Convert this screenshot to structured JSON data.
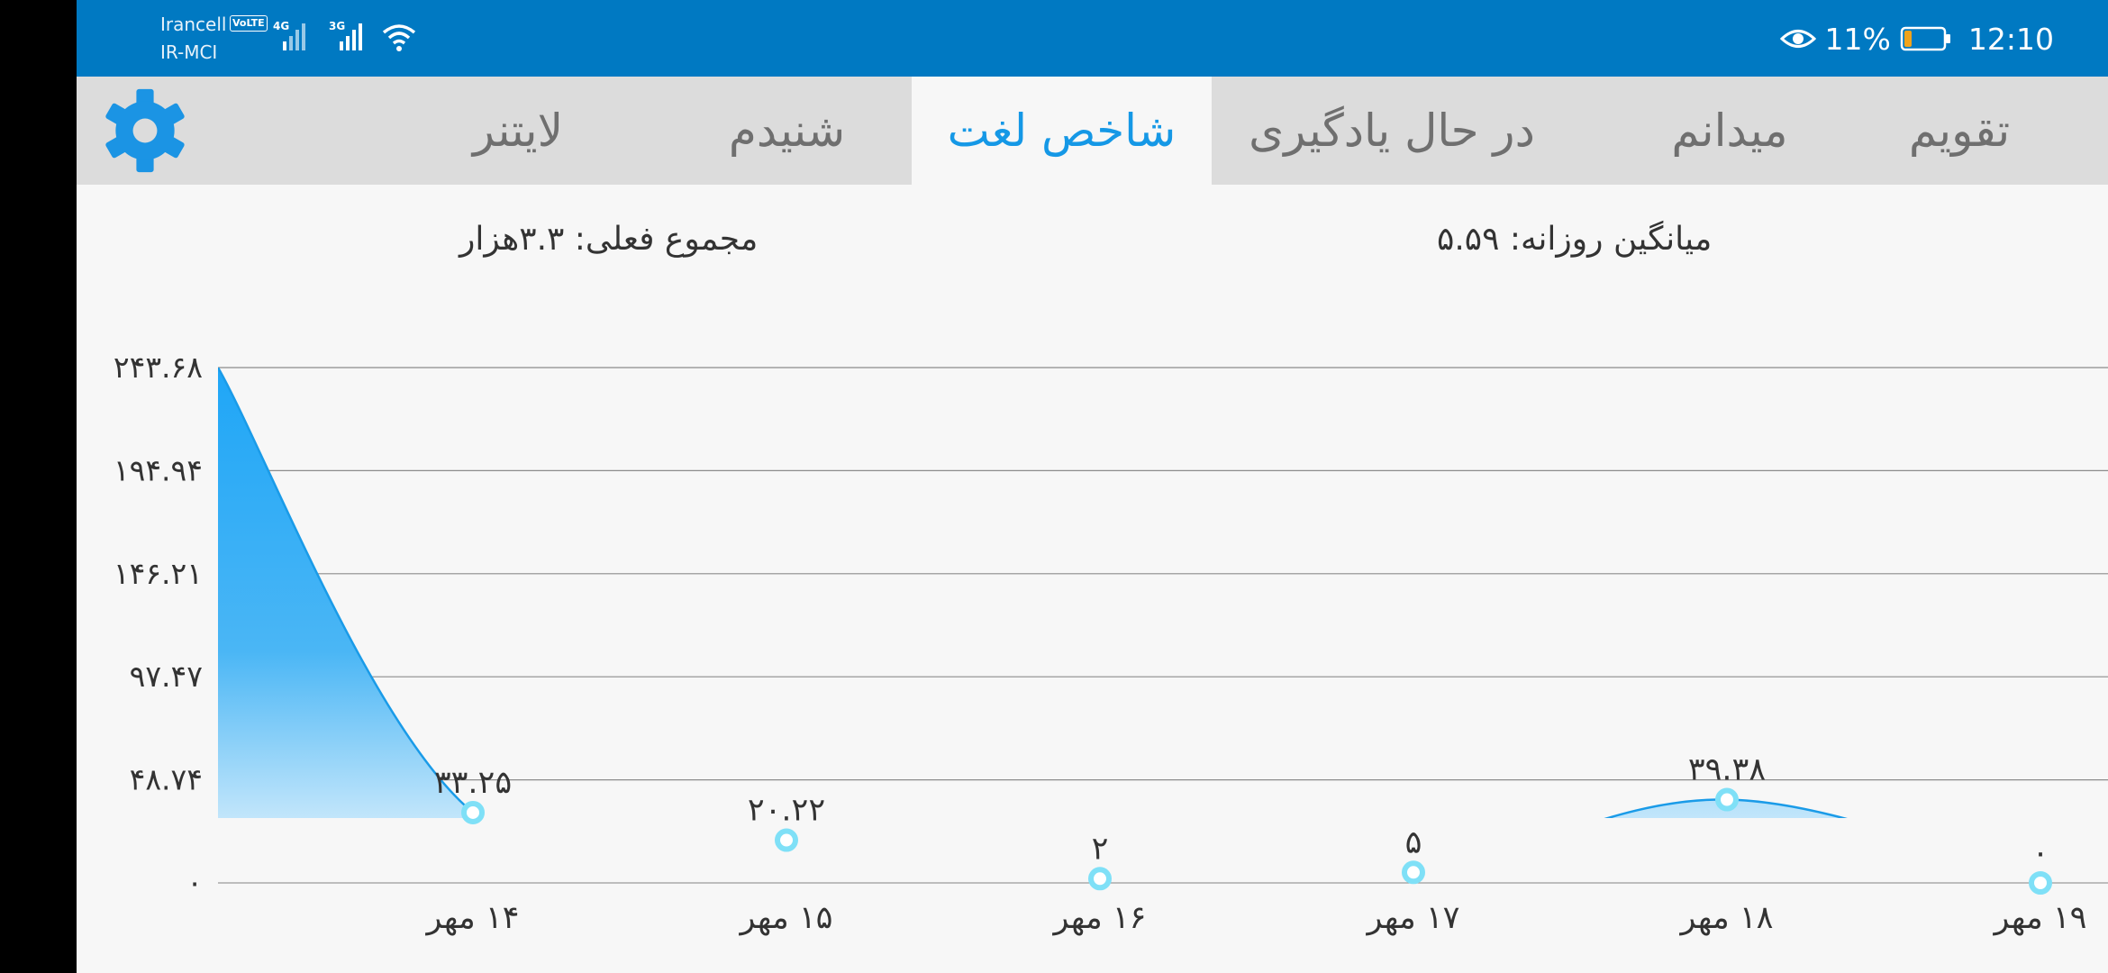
{
  "status_bar": {
    "carrier_primary": "Irancell",
    "carrier_secondary": "IR-MCI",
    "volte_badge": "VoLTE",
    "network_primary": "4G",
    "network_secondary": "3G",
    "battery_percent": "11%",
    "time": "12:10"
  },
  "tabs": [
    {
      "label": "تقویم",
      "active": false
    },
    {
      "label": "میدانم",
      "active": false
    },
    {
      "label": "در حال یادگیری",
      "active": false
    },
    {
      "label": "شاخص لغت",
      "active": true
    },
    {
      "label": "شنیدم",
      "active": false
    },
    {
      "label": "لایتنر",
      "active": false
    }
  ],
  "stats": {
    "daily_average": "میانگین روزانه: ۵.۵۹",
    "current_total": "مجموع فعلی: ۳.۳هزار"
  },
  "colors": {
    "status_bar": "#0079c2",
    "accent": "#1598e6",
    "series_line": "#1a9be8",
    "area_top": "#1fa6f7",
    "marker": "#7fe0f7"
  },
  "chart_data": {
    "type": "area",
    "title": "",
    "xlabel": "",
    "ylabel": "",
    "yticks": [
      "۰",
      "۴۸.۷۴",
      "۹۷.۴۷",
      "۱۴۶.۲۱",
      "۱۹۴.۹۴",
      "۲۴۳.۶۸"
    ],
    "ylim": [
      0,
      243.68
    ],
    "grid": true,
    "categories": [
      "۱۴ مهر",
      "۱۵ مهر",
      "۱۶ مهر",
      "۱۷ مهر",
      "۱۸ مهر",
      "۱۹ مهر"
    ],
    "values": [
      33.25,
      20.22,
      2,
      5,
      39.38,
      0
    ],
    "data_labels": [
      "۳۳.۲۵",
      "۲۰.۲۲",
      "۲",
      "۵",
      "۳۹.۳۸",
      "۰"
    ],
    "leading_value": 243.68
  }
}
